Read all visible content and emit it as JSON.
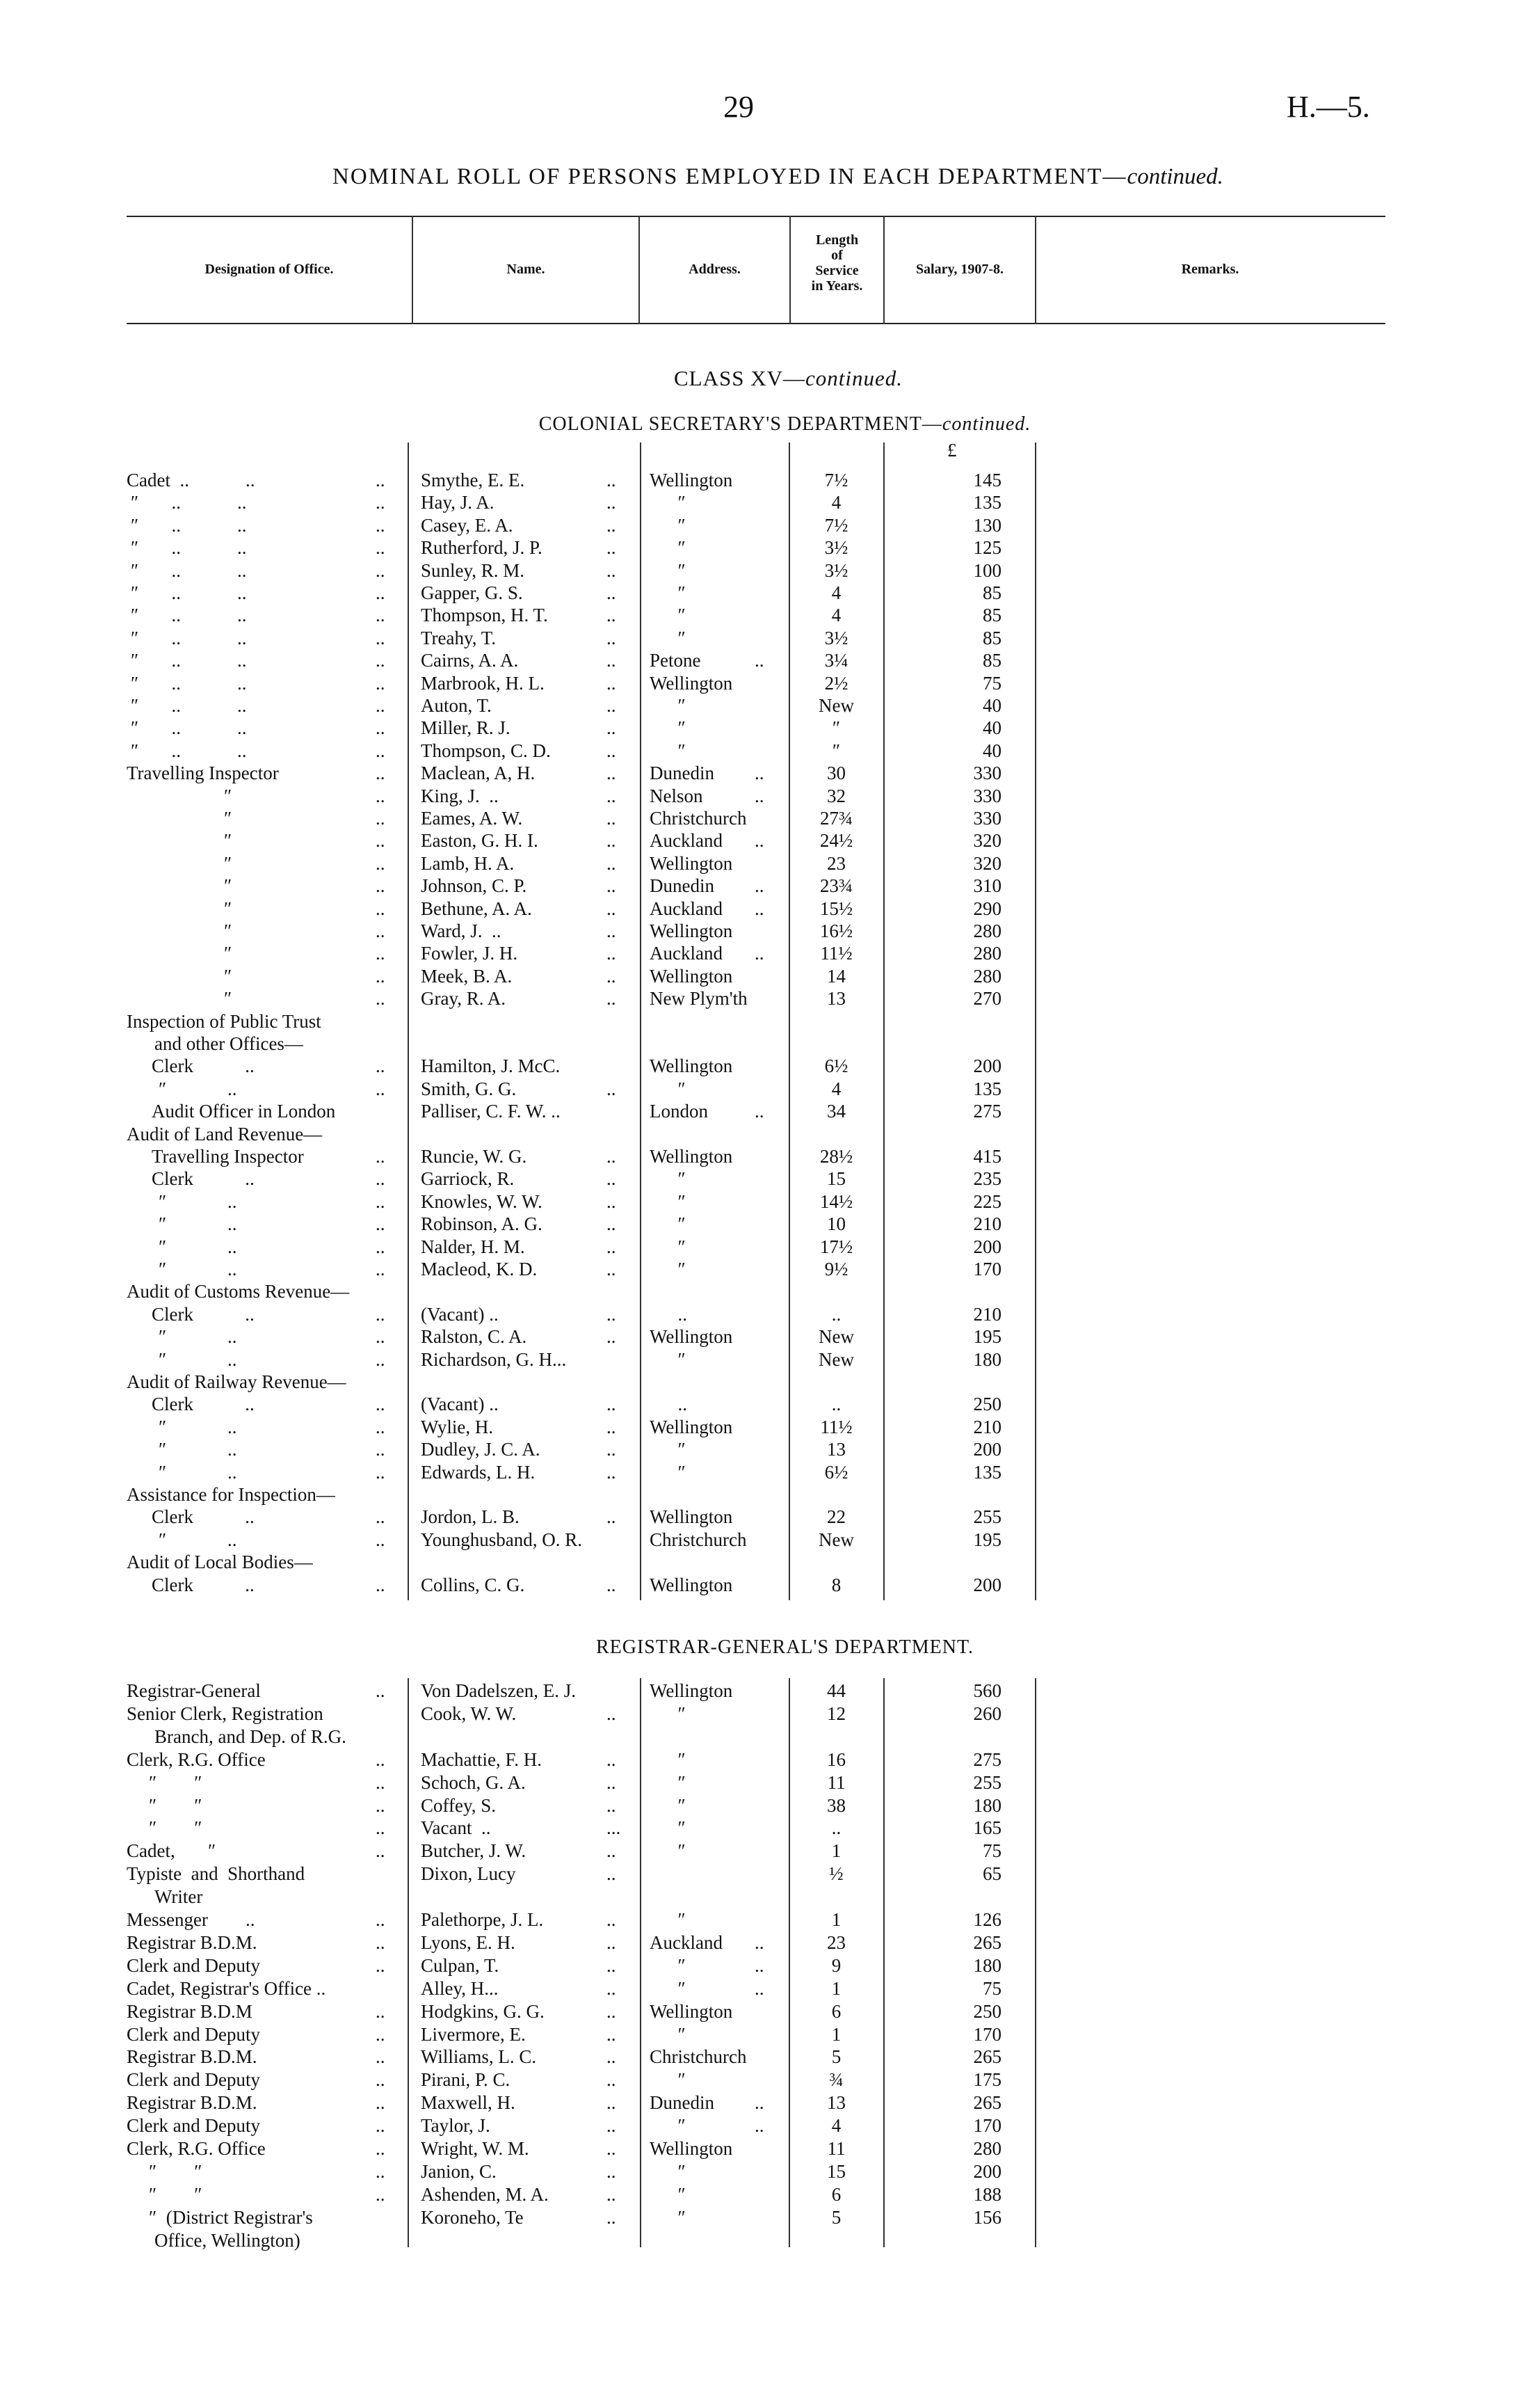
{
  "page": {
    "number": "29",
    "reference": "H.—5."
  },
  "title": {
    "main": "NOMINAL ROLL OF PERSONS EMPLOYED IN EACH DEPARTMENT—",
    "italic": "continued."
  },
  "columns": {
    "designation": "Designation of Office.",
    "name": "Name.",
    "address": "Address.",
    "length": [
      "Length",
      "of",
      "Service",
      "in Years."
    ],
    "salary": "Salary, 1907-8.",
    "remarks": "Remarks."
  },
  "class_heading": {
    "main": "CLASS XV—",
    "italic": "continued."
  },
  "currency_symbol": "£",
  "sections": [
    {
      "title": "COLONIAL SECRETARY'S DEPARTMENT—",
      "title_italic": "continued.",
      "rows": [
        {
          "k": "top",
          "d": "Cadet  ..            ..",
          "dl": "..",
          "n": "Smythe, E. E.",
          "nl": "..",
          "a": "Wellington",
          "l": "7½",
          "s": "145"
        },
        {
          "k": "ditto1",
          "d": "″       ..            ..",
          "dl": "..",
          "n": "Hay, J. A.",
          "nl": "..",
          "a": "      ″",
          "l": "4",
          "s": "135"
        },
        {
          "k": "ditto1",
          "d": "″       ..            ..",
          "dl": "..",
          "n": "Casey, E. A.",
          "nl": "..",
          "a": "      ″",
          "l": "7½",
          "s": "130"
        },
        {
          "k": "ditto1",
          "d": "″       ..            ..",
          "dl": "..",
          "n": "Rutherford, J. P.",
          "nl": "..",
          "a": "      ″",
          "l": "3½",
          "s": "125"
        },
        {
          "k": "ditto1",
          "d": "″       ..            ..",
          "dl": "..",
          "n": "Sunley, R. M.",
          "nl": "..",
          "a": "      ″",
          "l": "3½",
          "s": "100"
        },
        {
          "k": "ditto1",
          "d": "″       ..            ..",
          "dl": "..",
          "n": "Gapper, G. S.",
          "nl": "..",
          "a": "      ″",
          "l": "4",
          "s": "85"
        },
        {
          "k": "ditto1",
          "d": "″       ..            ..",
          "dl": "..",
          "n": "Thompson, H. T.",
          "nl": "..",
          "a": "      ″",
          "l": "4",
          "s": "85"
        },
        {
          "k": "ditto1",
          "d": "″       ..            ..",
          "dl": "..",
          "n": "Treahy, T.",
          "nl": "..",
          "a": "      ″",
          "l": "3½",
          "s": "85"
        },
        {
          "k": "ditto1",
          "d": "″       ..            ..",
          "dl": "..",
          "n": "Cairns, A. A.",
          "nl": "..",
          "a": "Petone",
          "al": "..",
          "l": "3¼",
          "s": "85"
        },
        {
          "k": "ditto1",
          "d": "″       ..            ..",
          "dl": "..",
          "n": "Marbrook, H. L.",
          "nl": "..",
          "a": "Wellington",
          "l": "2½",
          "s": "75"
        },
        {
          "k": "ditto1",
          "d": "″       ..            ..",
          "dl": "..",
          "n": "Auton, T.",
          "nl": "..",
          "a": "      ″",
          "l": "New",
          "s": "40"
        },
        {
          "k": "ditto1",
          "d": "″       ..            ..",
          "dl": "..",
          "n": "Miller, R. J.",
          "nl": "..",
          "a": "      ″",
          "l": "″",
          "s": "40"
        },
        {
          "k": "ditto1",
          "d": "″       ..            ..",
          "dl": "..",
          "n": "Thompson, C. D.",
          "nl": "..",
          "a": "      ″",
          "l": "″",
          "s": "40"
        },
        {
          "k": "top",
          "d": "Travelling Inspector",
          "dl": "..",
          "n": "Maclean, A, H.",
          "nl": "..",
          "a": "Dunedin",
          "al": "..",
          "l": "30",
          "s": "330"
        },
        {
          "k": "ditto2",
          "d": "″",
          "dl": "..",
          "n": "King, J.  ..",
          "nl": "..",
          "a": "Nelson",
          "al": "..",
          "l": "32",
          "s": "330"
        },
        {
          "k": "ditto2",
          "d": "″",
          "dl": "..",
          "n": "Eames, A. W.",
          "nl": "..",
          "a": "Christchurch",
          "l": "27¾",
          "s": "330"
        },
        {
          "k": "ditto2",
          "d": "″",
          "dl": "..",
          "n": "Easton, G. H. I.",
          "nl": "..",
          "a": "Auckland",
          "al": "..",
          "l": "24½",
          "s": "320"
        },
        {
          "k": "ditto2",
          "d": "″",
          "dl": "..",
          "n": "Lamb, H. A.",
          "nl": "..",
          "a": "Wellington",
          "l": "23",
          "s": "320"
        },
        {
          "k": "ditto2",
          "d": "″",
          "dl": "..",
          "n": "Johnson, C. P.",
          "nl": "..",
          "a": "Dunedin",
          "al": "..",
          "l": "23¾",
          "s": "310"
        },
        {
          "k": "ditto2",
          "d": "″",
          "dl": "..",
          "n": "Bethune, A. A.",
          "nl": "..",
          "a": "Auckland",
          "al": "..",
          "l": "15½",
          "s": "290"
        },
        {
          "k": "ditto2",
          "d": "″",
          "dl": "..",
          "n": "Ward, J.  ..",
          "nl": "..",
          "a": "Wellington",
          "l": "16½",
          "s": "280"
        },
        {
          "k": "ditto2",
          "d": "″",
          "dl": "..",
          "n": "Fowler, J. H.",
          "nl": "..",
          "a": "Auckland",
          "al": "..",
          "l": "11½",
          "s": "280"
        },
        {
          "k": "ditto2",
          "d": "″",
          "dl": "..",
          "n": "Meek, B. A.",
          "nl": "..",
          "a": "Wellington",
          "l": "14",
          "s": "280"
        },
        {
          "k": "ditto2",
          "d": "″",
          "dl": "..",
          "n": "Gray, R. A.",
          "nl": "..",
          "a": "New Plym'th",
          "l": "13",
          "s": "270"
        },
        {
          "k": "top",
          "d": "Inspection of Public Trust"
        },
        {
          "k": "cont",
          "d": "and other Offices—"
        },
        {
          "k": "sub",
          "d": "Clerk           ..",
          "dl": "..",
          "n": "Hamilton, J. McC.",
          "a": "Wellington",
          "l": "6½",
          "s": "200"
        },
        {
          "k": "ditto3",
          "d": "″             ..",
          "dl": "..",
          "n": "Smith, G. G.",
          "nl": "..",
          "a": "      ″",
          "l": "4",
          "s": "135"
        },
        {
          "k": "sub",
          "d": "Audit Officer in London",
          "n": "Palliser, C. F. W. ..",
          "a": "London",
          "al": "..",
          "l": "34",
          "s": "275"
        },
        {
          "k": "top",
          "d": "Audit of Land Revenue—"
        },
        {
          "k": "sub",
          "d": "Travelling Inspector",
          "dl": "..",
          "n": "Runcie, W. G.",
          "nl": "..",
          "a": "Wellington",
          "l": "28½",
          "s": "415"
        },
        {
          "k": "sub",
          "d": "Clerk           ..",
          "dl": "..",
          "n": "Garriock, R.",
          "nl": "..",
          "a": "      ″",
          "l": "15",
          "s": "235"
        },
        {
          "k": "ditto3",
          "d": "″             ..",
          "dl": "..",
          "n": "Knowles, W. W.",
          "nl": "..",
          "a": "      ″",
          "l": "14½",
          "s": "225"
        },
        {
          "k": "ditto3",
          "d": "″             ..",
          "dl": "..",
          "n": "Robinson, A. G.",
          "nl": "..",
          "a": "      ″",
          "l": "10",
          "s": "210"
        },
        {
          "k": "ditto3",
          "d": "″             ..",
          "dl": "..",
          "n": "Nalder, H. M.",
          "nl": "..",
          "a": "      ″",
          "l": "17½",
          "s": "200"
        },
        {
          "k": "ditto3",
          "d": "″             ..",
          "dl": "..",
          "n": "Macleod, K. D.",
          "nl": "..",
          "a": "      ″",
          "l": "9½",
          "s": "170"
        },
        {
          "k": "top",
          "d": "Audit of Customs Revenue—"
        },
        {
          "k": "sub",
          "d": "Clerk           ..",
          "dl": "..",
          "n": "(Vacant) ..",
          "nl": "..",
          "a": "      ..",
          "l": "..",
          "s": "210"
        },
        {
          "k": "ditto3",
          "d": "″             ..",
          "dl": "..",
          "n": "Ralston, C. A.",
          "nl": "..",
          "a": "Wellington",
          "l": "New",
          "s": "195"
        },
        {
          "k": "ditto3",
          "d": "″             ..",
          "dl": "..",
          "n": "Richardson, G. H...",
          "a": "      ″",
          "l": "New",
          "s": "180"
        },
        {
          "k": "top",
          "d": "Audit of Railway Revenue—"
        },
        {
          "k": "sub",
          "d": "Clerk           ..",
          "dl": "..",
          "n": "(Vacant) ..",
          "nl": "..",
          "a": "      ..",
          "l": "..",
          "s": "250"
        },
        {
          "k": "ditto3",
          "d": "″             ..",
          "dl": "..",
          "n": "Wylie, H.",
          "nl": "..",
          "a": "Wellington",
          "l": "11½",
          "s": "210"
        },
        {
          "k": "ditto3",
          "d": "″             ..",
          "dl": "..",
          "n": "Dudley, J. C. A.",
          "nl": "..",
          "a": "      ″",
          "l": "13",
          "s": "200"
        },
        {
          "k": "ditto3",
          "d": "″             ..",
          "dl": "..",
          "n": "Edwards, L. H.",
          "nl": "..",
          "a": "      ″",
          "l": "6½",
          "s": "135"
        },
        {
          "k": "top",
          "d": "Assistance for Inspection—"
        },
        {
          "k": "sub",
          "d": "Clerk           ..",
          "dl": "..",
          "n": "Jordon, L. B.",
          "nl": "..",
          "a": "Wellington",
          "l": "22",
          "s": "255"
        },
        {
          "k": "ditto3",
          "d": "″             ..",
          "dl": "..",
          "n": "Younghusband, O. R.",
          "a": "Christchurch",
          "l": "New",
          "s": "195"
        },
        {
          "k": "top",
          "d": "Audit of Local Bodies—"
        },
        {
          "k": "sub",
          "d": "Clerk           ..",
          "dl": "..",
          "n": "Collins, C. G.",
          "nl": "..",
          "a": "Wellington",
          "l": "8",
          "s": "200"
        }
      ]
    },
    {
      "title": "REGISTRAR-GENERAL'S DEPARTMENT.",
      "title_italic": "",
      "rows": [
        {
          "k": "top",
          "d": "Registrar-General",
          "dl": "..",
          "n": "Von Dadelszen, E. J.",
          "a": "Wellington",
          "l": "44",
          "s": "560"
        },
        {
          "k": "top",
          "d": "Senior Clerk, Registration",
          "n": "Cook, W. W.",
          "nl": "..",
          "a": "      ″",
          "l": "12",
          "s": "260"
        },
        {
          "k": "cont",
          "d": "Branch, and Dep. of R.G."
        },
        {
          "k": "top",
          "d": "Clerk, R.G. Office",
          "dl": "..",
          "n": "Machattie, F. H.",
          "nl": "..",
          "a": "      ″",
          "l": "16",
          "s": "275"
        },
        {
          "k": "ditto4",
          "d": "″        ″",
          "dl": "..",
          "n": "Schoch, G. A.",
          "nl": "..",
          "a": "      ″",
          "l": "11",
          "s": "255"
        },
        {
          "k": "ditto4",
          "d": "″        ″",
          "dl": "..",
          "n": "Coffey, S.",
          "nl": "..",
          "a": "      ″",
          "l": "38",
          "s": "180"
        },
        {
          "k": "ditto4",
          "d": "″        ″",
          "dl": "..",
          "n": "Vacant  ..",
          "nl": "...",
          "a": "      ″",
          "l": "..",
          "s": "165"
        },
        {
          "k": "top",
          "d": "Cadet,       ″",
          "dl": "..",
          "n": "Butcher, J. W.",
          "nl": "..",
          "a": "      ″",
          "l": "1",
          "s": "75"
        },
        {
          "k": "top",
          "d": "Typiste  and  Shorthand",
          "n": "Dixon, Lucy",
          "nl": "..",
          "l": "½",
          "s": "65"
        },
        {
          "k": "cont",
          "d": "Writer"
        },
        {
          "k": "top",
          "d": "Messenger        ..",
          "dl": "..",
          "n": "Palethorpe, J. L.",
          "nl": "..",
          "a": "      ″",
          "l": "1",
          "s": "126"
        },
        {
          "k": "top",
          "d": "Registrar B.D.M.",
          "dl": "..",
          "n": "Lyons, E. H.",
          "nl": "..",
          "a": "Auckland",
          "al": "..",
          "l": "23",
          "s": "265"
        },
        {
          "k": "top",
          "d": "Clerk and Deputy",
          "dl": "..",
          "n": "Culpan, T.",
          "nl": "..",
          "a": "      ″",
          "al": "..",
          "l": "9",
          "s": "180"
        },
        {
          "k": "top",
          "d": "Cadet, Registrar's Office ..",
          "n": "Alley, H...",
          "nl": "..",
          "a": "      ″",
          "al": "..",
          "l": "1",
          "s": "75"
        },
        {
          "k": "top",
          "d": "Registrar B.D.M",
          "dl": "..",
          "n": "Hodgkins, G. G.",
          "nl": "..",
          "a": "Wellington",
          "l": "6",
          "s": "250"
        },
        {
          "k": "top",
          "d": "Clerk and Deputy",
          "dl": "..",
          "n": "Livermore, E.",
          "nl": "..",
          "a": "      ″",
          "l": "1",
          "s": "170"
        },
        {
          "k": "top",
          "d": "Registrar B.D.M.",
          "dl": "..",
          "n": "Williams, L. C.",
          "nl": "..",
          "a": "Christchurch",
          "l": "5",
          "s": "265"
        },
        {
          "k": "top",
          "d": "Clerk and Deputy",
          "dl": "..",
          "n": "Pirani, P. C.",
          "nl": "..",
          "a": "      ″",
          "l": "¾",
          "s": "175"
        },
        {
          "k": "top",
          "d": "Registrar B.D.M.",
          "dl": "..",
          "n": "Maxwell, H.",
          "nl": "..",
          "a": "Dunedin",
          "al": "..",
          "l": "13",
          "s": "265"
        },
        {
          "k": "top",
          "d": "Clerk and Deputy",
          "dl": "..",
          "n": "Taylor, J.",
          "nl": "..",
          "a": "      ″",
          "al": "..",
          "l": "4",
          "s": "170"
        },
        {
          "k": "top",
          "d": "Clerk, R.G. Office",
          "dl": "..",
          "n": "Wright, W. M.",
          "nl": "..",
          "a": "Wellington",
          "l": "11",
          "s": "280"
        },
        {
          "k": "ditto4",
          "d": "″        ″",
          "dl": "..",
          "n": "Janion, C.",
          "nl": "..",
          "a": "      ″",
          "l": "15",
          "s": "200"
        },
        {
          "k": "ditto4",
          "d": "″        ″",
          "dl": "..",
          "n": "Ashenden, M. A.",
          "nl": "..",
          "a": "      ″",
          "l": "6",
          "s": "188"
        },
        {
          "k": "ditto4",
          "d": "″  (District Registrar's",
          "n": "Koroneho, Te",
          "nl": "..",
          "a": "      ″",
          "l": "5",
          "s": "156"
        },
        {
          "k": "cont",
          "d": "Office, Wellington)"
        }
      ]
    }
  ]
}
